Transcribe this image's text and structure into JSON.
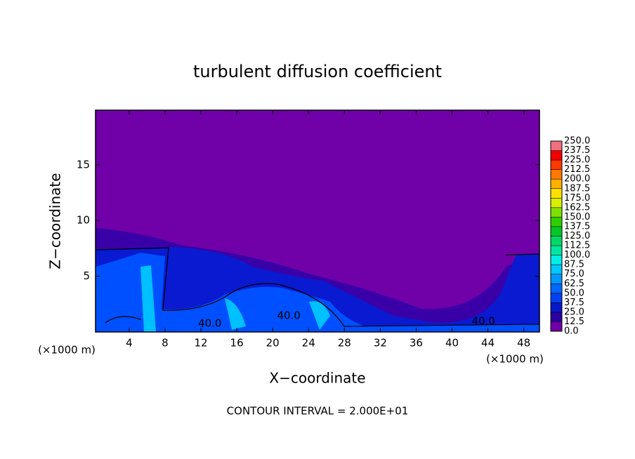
{
  "chart_data": {
    "type": "contour",
    "title": "turbulent diffusion coefficient",
    "x_label": "X−coordinate",
    "y_label": "Z−coordinate",
    "x_unit_label": "(×1000 m)",
    "footer": "CONTOUR INTERVAL = 2.000E+01",
    "xlim": [
      0.25,
      49.75
    ],
    "ylim": [
      0,
      19.9
    ],
    "xticks": [
      4,
      8,
      12,
      16,
      20,
      24,
      28,
      32,
      36,
      40,
      44,
      48
    ],
    "yticks": [
      5,
      10,
      15
    ],
    "contour_labels": [
      {
        "value": 40,
        "label": "40.0",
        "x": 13,
        "y": 0.75
      },
      {
        "value": 40,
        "label": "40.0",
        "x": 21.8,
        "y": 1.45
      },
      {
        "value": 40,
        "label": "40.0",
        "x": 43.5,
        "y": 0.95
      }
    ],
    "colorbar": {
      "levels": [
        {
          "value": 0,
          "label": "0.0"
        },
        {
          "value": 12.5,
          "label": "12.5"
        },
        {
          "value": 25,
          "label": "25.0"
        },
        {
          "value": 37.5,
          "label": "37.5"
        },
        {
          "value": 50,
          "label": "50.0"
        },
        {
          "value": 62.5,
          "label": "62.5"
        },
        {
          "value": 75,
          "label": "75.0"
        },
        {
          "value": 87.5,
          "label": "87.5"
        },
        {
          "value": 100,
          "label": "100.0"
        },
        {
          "value": 112.5,
          "label": "112.5"
        },
        {
          "value": 125,
          "label": "125.0"
        },
        {
          "value": 137.5,
          "label": "137.5"
        },
        {
          "value": 150,
          "label": "150.0"
        },
        {
          "value": 162.5,
          "label": "162.5"
        },
        {
          "value": 175,
          "label": "175.0"
        },
        {
          "value": 187.5,
          "label": "187.5"
        },
        {
          "value": 200,
          "label": "200.0"
        },
        {
          "value": 212.5,
          "label": "212.5"
        },
        {
          "value": 225,
          "label": "225.0"
        },
        {
          "value": 237.5,
          "label": "237.5"
        },
        {
          "value": 250,
          "label": "250.0"
        }
      ],
      "colors": [
        "#7000a8",
        "#2a00a0",
        "#0818c8",
        "#0040f0",
        "#0068ff",
        "#0098ff",
        "#00c8ff",
        "#00eee8",
        "#00e8a0",
        "#00d868",
        "#00c828",
        "#30d000",
        "#80e000",
        "#d8f000",
        "#ffe000",
        "#ffb000",
        "#ff7800",
        "#ff3800",
        "#f00000",
        "#f07080"
      ]
    }
  }
}
